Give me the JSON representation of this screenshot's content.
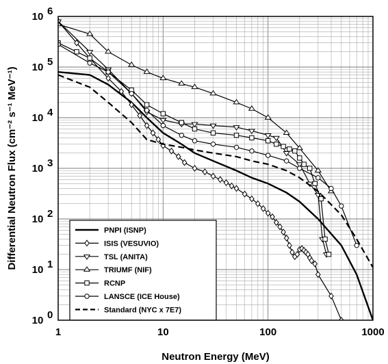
{
  "chart_data": {
    "type": "line",
    "xscale": "log",
    "yscale": "log",
    "xlim": [
      1,
      1000
    ],
    "ylim": [
      1,
      1000000
    ],
    "grid": true,
    "legend_position": "bottom-left",
    "xlabel": "Neutron Energy (MeV)",
    "ylabel": "Differential Neutron Flux (cm⁻² s⁻¹ MeV⁻¹)",
    "x_ticks": [
      {
        "value": 1,
        "label": "1"
      },
      {
        "value": 10,
        "label": "10"
      },
      {
        "value": 100,
        "label": "100"
      },
      {
        "value": 1000,
        "label": "1000"
      }
    ],
    "y_ticks": [
      {
        "value": 1,
        "mant": "10",
        "exp": "0"
      },
      {
        "value": 10,
        "mant": "10",
        "exp": "1"
      },
      {
        "value": 100,
        "mant": "10",
        "exp": "2"
      },
      {
        "value": 1000,
        "mant": "10",
        "exp": "3"
      },
      {
        "value": 10000,
        "mant": "10",
        "exp": "4"
      },
      {
        "value": 100000,
        "mant": "10",
        "exp": "5"
      },
      {
        "value": 1000000,
        "mant": "10",
        "exp": "6"
      }
    ],
    "series": [
      {
        "name": "PNPI (ISNP)",
        "line": "solid",
        "marker": "none",
        "width": 2.4,
        "points": [
          [
            1,
            80000
          ],
          [
            2,
            70000
          ],
          [
            3,
            45000
          ],
          [
            5,
            20000
          ],
          [
            7,
            10000
          ],
          [
            10,
            5000
          ],
          [
            15,
            3000
          ],
          [
            20,
            2000
          ],
          [
            30,
            1400
          ],
          [
            50,
            900
          ],
          [
            70,
            650
          ],
          [
            100,
            500
          ],
          [
            150,
            330
          ],
          [
            200,
            220
          ],
          [
            300,
            100
          ],
          [
            500,
            30
          ],
          [
            700,
            8
          ],
          [
            1000,
            1
          ]
        ]
      },
      {
        "name": "ISIS (VESUVIO)",
        "line": "solid",
        "marker": "diamond",
        "width": 1.2,
        "points": [
          [
            1,
            800000
          ],
          [
            1.5,
            300000
          ],
          [
            2,
            150000
          ],
          [
            3,
            60000
          ],
          [
            4,
            33000
          ],
          [
            5,
            18000
          ],
          [
            6,
            11000
          ],
          [
            7,
            7000
          ],
          [
            8,
            5000
          ],
          [
            9,
            3700
          ],
          [
            10,
            2800
          ],
          [
            12,
            2200
          ],
          [
            14,
            1700
          ],
          [
            16,
            1300
          ],
          [
            20,
            1000
          ],
          [
            25,
            850
          ],
          [
            30,
            700
          ],
          [
            35,
            600
          ],
          [
            40,
            520
          ],
          [
            45,
            450
          ],
          [
            50,
            400
          ],
          [
            60,
            310
          ],
          [
            70,
            250
          ],
          [
            80,
            200
          ],
          [
            90,
            160
          ],
          [
            100,
            130
          ],
          [
            110,
            110
          ],
          [
            120,
            85
          ],
          [
            130,
            70
          ],
          [
            140,
            55
          ],
          [
            150,
            42
          ],
          [
            160,
            30
          ],
          [
            170,
            22
          ],
          [
            180,
            18
          ],
          [
            190,
            20
          ],
          [
            200,
            25
          ],
          [
            210,
            26
          ],
          [
            220,
            24
          ],
          [
            230,
            22
          ],
          [
            240,
            20
          ],
          [
            250,
            17
          ],
          [
            260,
            15
          ],
          [
            280,
            13
          ],
          [
            300,
            8
          ],
          [
            400,
            3
          ],
          [
            500,
            1
          ]
        ]
      },
      {
        "name": "TSL (ANITA)",
        "line": "solid",
        "marker": "triangle-down",
        "width": 1.2,
        "points": [
          [
            1,
            800000
          ],
          [
            2,
            200000
          ],
          [
            3,
            90000
          ],
          [
            5,
            30000
          ],
          [
            7,
            13000
          ],
          [
            10,
            9000
          ],
          [
            15,
            7500
          ],
          [
            20,
            7500
          ],
          [
            30,
            7000
          ],
          [
            50,
            6500
          ],
          [
            70,
            5500
          ],
          [
            100,
            4500
          ],
          [
            120,
            4000
          ],
          [
            150,
            2000
          ],
          [
            200,
            1200
          ],
          [
            250,
            500
          ],
          [
            300,
            300
          ],
          [
            330,
            40
          ],
          [
            360,
            20
          ]
        ]
      },
      {
        "name": "TRIUMF (NIF)",
        "line": "solid",
        "marker": "triangle-up",
        "width": 1.2,
        "points": [
          [
            1,
            700000
          ],
          [
            2,
            450000
          ],
          [
            3,
            200000
          ],
          [
            5,
            110000
          ],
          [
            7,
            80000
          ],
          [
            10,
            60000
          ],
          [
            15,
            47000
          ],
          [
            20,
            40000
          ],
          [
            30,
            30000
          ],
          [
            50,
            20000
          ],
          [
            70,
            15000
          ],
          [
            100,
            10000
          ],
          [
            150,
            5000
          ],
          [
            200,
            2500
          ],
          [
            300,
            900
          ],
          [
            400,
            350
          ]
        ]
      },
      {
        "name": "RCNP",
        "line": "solid",
        "marker": "square",
        "width": 1.2,
        "points": [
          [
            1,
            300000
          ],
          [
            1.5,
            200000
          ],
          [
            2,
            150000
          ],
          [
            3,
            80000
          ],
          [
            5,
            35000
          ],
          [
            7,
            18000
          ],
          [
            10,
            12000
          ],
          [
            15,
            8000
          ],
          [
            20,
            6000
          ],
          [
            30,
            5000
          ],
          [
            50,
            4500
          ],
          [
            70,
            4000
          ],
          [
            100,
            3500
          ],
          [
            120,
            3000
          ],
          [
            140,
            2700
          ],
          [
            160,
            2400
          ],
          [
            180,
            2200
          ],
          [
            200,
            1600
          ],
          [
            220,
            1200
          ],
          [
            250,
            1000
          ],
          [
            280,
            500
          ],
          [
            320,
            250
          ],
          [
            350,
            40
          ],
          [
            380,
            20
          ]
        ]
      },
      {
        "name": "LANSCE (ICE House)",
        "line": "solid",
        "marker": "circle",
        "width": 1.2,
        "points": [
          [
            1,
            280000
          ],
          [
            2,
            120000
          ],
          [
            3,
            80000
          ],
          [
            5,
            30000
          ],
          [
            7,
            14000
          ],
          [
            10,
            7000
          ],
          [
            15,
            4500
          ],
          [
            20,
            3500
          ],
          [
            30,
            3000
          ],
          [
            50,
            2600
          ],
          [
            70,
            2200
          ],
          [
            100,
            1800
          ],
          [
            150,
            1400
          ],
          [
            200,
            1000
          ],
          [
            300,
            650
          ],
          [
            400,
            400
          ],
          [
            500,
            180
          ],
          [
            700,
            30
          ]
        ]
      },
      {
        "name": "Standard (NYC x 7E7)",
        "line": "dashed",
        "marker": "none",
        "width": 2.2,
        "points": [
          [
            1,
            70000
          ],
          [
            2,
            40000
          ],
          [
            3,
            20000
          ],
          [
            5,
            8000
          ],
          [
            7,
            3700
          ],
          [
            10,
            3000
          ],
          [
            15,
            2600
          ],
          [
            20,
            2300
          ],
          [
            30,
            2000
          ],
          [
            50,
            1700
          ],
          [
            70,
            1400
          ],
          [
            100,
            1200
          ],
          [
            150,
            900
          ],
          [
            200,
            650
          ],
          [
            300,
            350
          ],
          [
            500,
            120
          ],
          [
            700,
            40
          ],
          [
            1000,
            11
          ]
        ]
      }
    ]
  }
}
